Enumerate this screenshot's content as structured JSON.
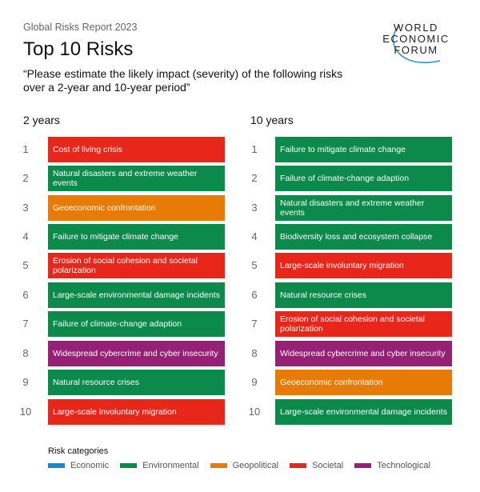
{
  "header": {
    "subtitle": "Global Risks Report 2023",
    "title": "Top 10 Risks",
    "question": "“Please estimate the likely impact (severity) of the following risks over a 2-year and 10-year period”"
  },
  "logo": {
    "lines": [
      "WORLD",
      "ECONOMIC",
      "FORUM"
    ]
  },
  "colors": {
    "Economic": "#1a86cf",
    "Environmental": "#0b8a4b",
    "Geopolitical": "#e77b05",
    "Societal": "#e8271a",
    "Technological": "#962076"
  },
  "columns": [
    {
      "heading": "2 years",
      "items": [
        {
          "rank": "1",
          "label": "Cost of living crisis",
          "category": "Societal"
        },
        {
          "rank": "2",
          "label": "Natural disasters and extreme weather events",
          "category": "Environmental"
        },
        {
          "rank": "3",
          "label": "Geoeconomic confrontation",
          "category": "Geopolitical"
        },
        {
          "rank": "4",
          "label": "Failure to mitigate climate change",
          "category": "Environmental"
        },
        {
          "rank": "5",
          "label": "Erosion of social cohesion and societal polarization",
          "category": "Societal"
        },
        {
          "rank": "6",
          "label": "Large-scale environmental damage incidents",
          "category": "Environmental"
        },
        {
          "rank": "7",
          "label": "Failure of climate-change adaption",
          "category": "Environmental"
        },
        {
          "rank": "8",
          "label": "Widespread cybercrime and cyber insecurity",
          "category": "Technological"
        },
        {
          "rank": "9",
          "label": "Natural resource crises",
          "category": "Environmental"
        },
        {
          "rank": "10",
          "label": "Large-scale involuntary migration",
          "category": "Societal"
        }
      ]
    },
    {
      "heading": "10 years",
      "items": [
        {
          "rank": "1",
          "label": "Failure to mitigate climate change",
          "category": "Environmental"
        },
        {
          "rank": "2",
          "label": "Failure of climate-change adaption",
          "category": "Environmental"
        },
        {
          "rank": "3",
          "label": "Natural disasters and extreme weather events",
          "category": "Environmental"
        },
        {
          "rank": "4",
          "label": "Biodiversity loss and ecosystem collapse",
          "category": "Environmental"
        },
        {
          "rank": "5",
          "label": "Large-scale involuntary migration",
          "category": "Societal"
        },
        {
          "rank": "6",
          "label": "Natural resource crises",
          "category": "Environmental"
        },
        {
          "rank": "7",
          "label": "Erosion of social cohesion and societal polarization",
          "category": "Societal"
        },
        {
          "rank": "8",
          "label": "Widespread cybercrime and cyber insecurity",
          "category": "Technological"
        },
        {
          "rank": "9",
          "label": "Geoeconomic confrontation",
          "category": "Geopolitical"
        },
        {
          "rank": "10",
          "label": "Large-scale environmental damage incidents",
          "category": "Environmental"
        }
      ]
    }
  ],
  "legend": {
    "title": "Risk categories",
    "items": [
      "Economic",
      "Environmental",
      "Geopolitical",
      "Societal",
      "Technological"
    ]
  }
}
